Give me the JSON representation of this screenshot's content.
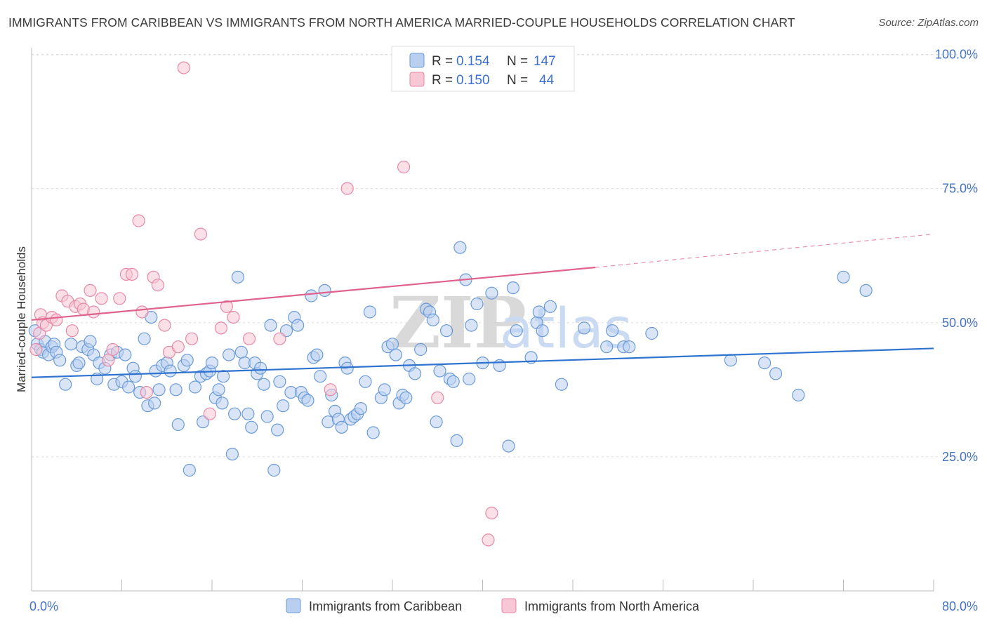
{
  "header": {
    "title": "IMMIGRANTS FROM CARIBBEAN VS IMMIGRANTS FROM NORTH AMERICA MARRIED-COUPLE HOUSEHOLDS CORRELATION CHART",
    "source": "Source: ZipAtlas.com"
  },
  "watermark": {
    "zip": "ZIP",
    "atlas": "atlas"
  },
  "chart_data": {
    "type": "scatter",
    "title": "IMMIGRANTS FROM CARIBBEAN VS IMMIGRANTS FROM NORTH AMERICA MARRIED-COUPLE HOUSEHOLDS CORRELATION CHART",
    "xlabel": "",
    "ylabel": "Married-couple Households",
    "xlim": [
      0,
      80
    ],
    "ylim": [
      0,
      102
    ],
    "x_tick_labels": {
      "min": "0.0%",
      "max": "80.0%"
    },
    "y_ticks": [
      {
        "value": 25,
        "label": "25.0%"
      },
      {
        "value": 50,
        "label": "50.0%"
      },
      {
        "value": 75,
        "label": "75.0%"
      },
      {
        "value": 100,
        "label": "100.0%"
      }
    ],
    "grid": true,
    "legend_position": "top-center",
    "series": [
      {
        "name": "Immigrants from Caribbean",
        "color": "#6a9bd8",
        "fill": "#b9cff0",
        "line_color": "#2f73d0",
        "R": "0.154",
        "N": "147",
        "trend": {
          "x0": 0,
          "y0": 39.8,
          "x1": 80,
          "y1": 45.2
        },
        "points": [
          [
            0.3,
            48.5
          ],
          [
            0.5,
            46
          ],
          [
            0.8,
            45
          ],
          [
            1,
            44.5
          ],
          [
            1.2,
            46.5
          ],
          [
            1.5,
            44
          ],
          [
            1.8,
            45.5
          ],
          [
            2,
            46
          ],
          [
            2.2,
            44.5
          ],
          [
            2.5,
            43
          ],
          [
            3,
            38.5
          ],
          [
            3.5,
            46
          ],
          [
            4,
            42
          ],
          [
            4.2,
            42.5
          ],
          [
            4.5,
            45.5
          ],
          [
            5,
            45
          ],
          [
            5.2,
            46.5
          ],
          [
            5.5,
            44
          ],
          [
            5.8,
            39.5
          ],
          [
            6,
            42.5
          ],
          [
            6.5,
            41.5
          ],
          [
            7,
            44
          ],
          [
            7.3,
            38.5
          ],
          [
            7.6,
            44.5
          ],
          [
            8,
            39
          ],
          [
            8.3,
            44
          ],
          [
            8.6,
            38
          ],
          [
            9,
            41.5
          ],
          [
            9.2,
            40
          ],
          [
            9.6,
            37
          ],
          [
            10,
            47
          ],
          [
            10.3,
            34.5
          ],
          [
            10.6,
            51
          ],
          [
            10.9,
            35
          ],
          [
            11,
            41
          ],
          [
            11.3,
            37.5
          ],
          [
            11.6,
            42
          ],
          [
            12,
            42.5
          ],
          [
            12.3,
            41
          ],
          [
            12.8,
            37.5
          ],
          [
            13,
            31
          ],
          [
            13.5,
            42
          ],
          [
            13.8,
            43
          ],
          [
            14,
            22.5
          ],
          [
            14.5,
            38
          ],
          [
            15,
            40
          ],
          [
            15.2,
            31.5
          ],
          [
            15.5,
            40.5
          ],
          [
            15.8,
            41
          ],
          [
            16,
            42.5
          ],
          [
            16.3,
            36
          ],
          [
            16.6,
            37.5
          ],
          [
            16.9,
            35
          ],
          [
            17,
            40
          ],
          [
            17.5,
            44
          ],
          [
            17.8,
            25.5
          ],
          [
            18,
            33
          ],
          [
            18.3,
            58.5
          ],
          [
            18.6,
            44.5
          ],
          [
            18.9,
            42.5
          ],
          [
            19.2,
            33
          ],
          [
            19.5,
            30.5
          ],
          [
            19.8,
            42.5
          ],
          [
            20,
            40.5
          ],
          [
            20.3,
            41.5
          ],
          [
            20.6,
            38.5
          ],
          [
            20.9,
            32.5
          ],
          [
            21.2,
            49.5
          ],
          [
            21.5,
            22.5
          ],
          [
            21.8,
            30
          ],
          [
            22,
            39
          ],
          [
            22.3,
            34.5
          ],
          [
            22.6,
            48.5
          ],
          [
            23,
            37
          ],
          [
            23.3,
            51
          ],
          [
            23.6,
            49.5
          ],
          [
            23.9,
            37
          ],
          [
            24.2,
            36
          ],
          [
            24.5,
            35.5
          ],
          [
            24.8,
            55
          ],
          [
            25,
            43.5
          ],
          [
            25.3,
            44
          ],
          [
            25.6,
            40
          ],
          [
            26,
            56
          ],
          [
            26.3,
            31.5
          ],
          [
            26.6,
            36.5
          ],
          [
            26.9,
            33.5
          ],
          [
            27.2,
            32
          ],
          [
            27.5,
            30.5
          ],
          [
            27.8,
            42.5
          ],
          [
            28,
            41.5
          ],
          [
            28.3,
            32
          ],
          [
            28.6,
            32.5
          ],
          [
            28.9,
            33
          ],
          [
            29.2,
            34
          ],
          [
            29.6,
            39
          ],
          [
            30,
            52
          ],
          [
            30.3,
            29.5
          ],
          [
            31,
            36
          ],
          [
            31.3,
            37.5
          ],
          [
            31.6,
            45.5
          ],
          [
            32,
            46
          ],
          [
            32.3,
            44
          ],
          [
            32.6,
            35
          ],
          [
            32.9,
            36.5
          ],
          [
            33.2,
            36
          ],
          [
            33.5,
            42
          ],
          [
            34,
            40.5
          ],
          [
            34.5,
            45
          ],
          [
            35,
            52.5
          ],
          [
            35.3,
            52
          ],
          [
            35.6,
            50.5
          ],
          [
            35.9,
            31.5
          ],
          [
            36.2,
            41
          ],
          [
            36.8,
            48.5
          ],
          [
            37.1,
            39.5
          ],
          [
            37.4,
            39
          ],
          [
            37.7,
            28
          ],
          [
            38,
            64
          ],
          [
            38.5,
            58
          ],
          [
            38.8,
            39.5
          ],
          [
            39,
            49.5
          ],
          [
            39.5,
            53.5
          ],
          [
            40,
            42.5
          ],
          [
            40.8,
            55.5
          ],
          [
            41.5,
            42
          ],
          [
            42.3,
            27
          ],
          [
            42.7,
            56.5
          ],
          [
            43,
            48.5
          ],
          [
            44.3,
            43.5
          ],
          [
            44.8,
            50
          ],
          [
            45,
            52
          ],
          [
            45.3,
            48.5
          ],
          [
            46,
            53
          ],
          [
            47,
            38.5
          ],
          [
            49,
            49
          ],
          [
            51,
            45.5
          ],
          [
            51.5,
            48.5
          ],
          [
            52.5,
            45.5
          ],
          [
            53,
            45.5
          ],
          [
            55,
            48
          ],
          [
            62,
            43
          ],
          [
            65,
            42.5
          ],
          [
            66,
            40.5
          ],
          [
            68,
            36.5
          ],
          [
            72,
            58.5
          ],
          [
            74,
            56
          ]
        ]
      },
      {
        "name": "Immigrants from North America",
        "color": "#e68aa8",
        "fill": "#f8c7d6",
        "line_color": "#e0628c",
        "R": "0.150",
        "N": "44",
        "trend": {
          "x0": 0,
          "y0": 50.5,
          "x1": 50,
          "y1": 60.3,
          "dash_x1": 80,
          "dash_y1": 66.5
        },
        "points": [
          [
            0.4,
            45
          ],
          [
            0.7,
            48
          ],
          [
            0.8,
            51.5
          ],
          [
            1,
            50
          ],
          [
            1.3,
            49.5
          ],
          [
            1.8,
            51
          ],
          [
            2.2,
            50.5
          ],
          [
            2.7,
            55
          ],
          [
            3.2,
            54
          ],
          [
            3.6,
            48.5
          ],
          [
            3.9,
            53
          ],
          [
            4.3,
            53.5
          ],
          [
            4.6,
            52.5
          ],
          [
            5.2,
            56
          ],
          [
            5.5,
            52
          ],
          [
            6.2,
            54.5
          ],
          [
            6.8,
            43
          ],
          [
            7.2,
            45
          ],
          [
            7.8,
            54.5
          ],
          [
            8.4,
            59
          ],
          [
            8.9,
            59
          ],
          [
            9.5,
            69
          ],
          [
            9.8,
            52
          ],
          [
            10.2,
            37
          ],
          [
            10.8,
            58.5
          ],
          [
            11.2,
            57
          ],
          [
            11.8,
            49.5
          ],
          [
            12.2,
            44.5
          ],
          [
            13,
            45.5
          ],
          [
            13.5,
            97.5
          ],
          [
            14.2,
            47
          ],
          [
            15,
            66.5
          ],
          [
            15.8,
            33
          ],
          [
            16.8,
            49
          ],
          [
            17.3,
            53
          ],
          [
            17.9,
            51
          ],
          [
            19.3,
            47
          ],
          [
            22,
            47
          ],
          [
            26.5,
            37.5
          ],
          [
            28,
            75
          ],
          [
            33,
            79
          ],
          [
            36,
            36
          ],
          [
            40.5,
            9.5
          ],
          [
            40.8,
            14.5
          ]
        ]
      }
    ]
  },
  "legend": {
    "r_label": "R =",
    "n_label": "N ="
  }
}
